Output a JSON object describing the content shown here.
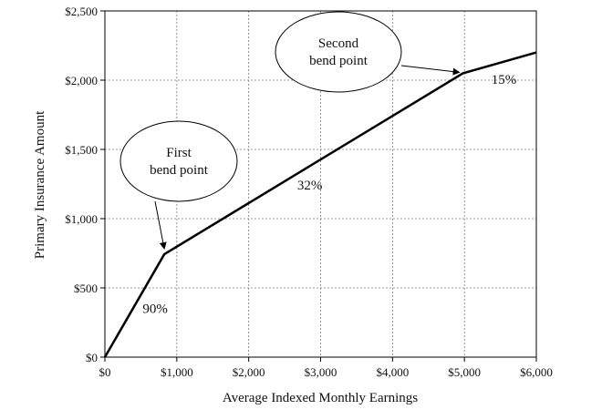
{
  "chart_data": {
    "type": "line",
    "title": "",
    "xlabel": "Average Indexed Monthly Earnings",
    "ylabel": "Primary Insurance Amount",
    "xlim": [
      0,
      6000
    ],
    "ylim": [
      0,
      2500
    ],
    "grid": true,
    "x_ticks": [
      0,
      1000,
      2000,
      3000,
      4000,
      5000,
      6000
    ],
    "x_tick_labels": [
      "$0",
      "$1,000",
      "$2,000",
      "$3,000",
      "$4,000",
      "$5,000",
      "$6,000"
    ],
    "y_ticks": [
      0,
      500,
      1000,
      1500,
      2000,
      2500
    ],
    "y_tick_labels": [
      "$0",
      "$500",
      "$1,000",
      "$1,500",
      "$2,000",
      "$2,500"
    ],
    "series": [
      {
        "x": [
          0,
          826,
          4980,
          6000
        ],
        "y": [
          0,
          743,
          2050,
          2200
        ]
      }
    ],
    "segment_labels": [
      {
        "text": "90%",
        "x": 700,
        "y": 320
      },
      {
        "text": "32%",
        "x": 2850,
        "y": 1210
      },
      {
        "text": "15%",
        "x": 5550,
        "y": 1975
      }
    ],
    "callouts": [
      {
        "lines": [
          "First",
          "bend point"
        ],
        "target_x": 826,
        "target_y": 743
      },
      {
        "lines": [
          "Second",
          "bend point"
        ],
        "target_x": 4980,
        "target_y": 2050
      }
    ],
    "colors": {
      "line": "#000000",
      "grid": "#777777",
      "text": "#111111"
    }
  }
}
